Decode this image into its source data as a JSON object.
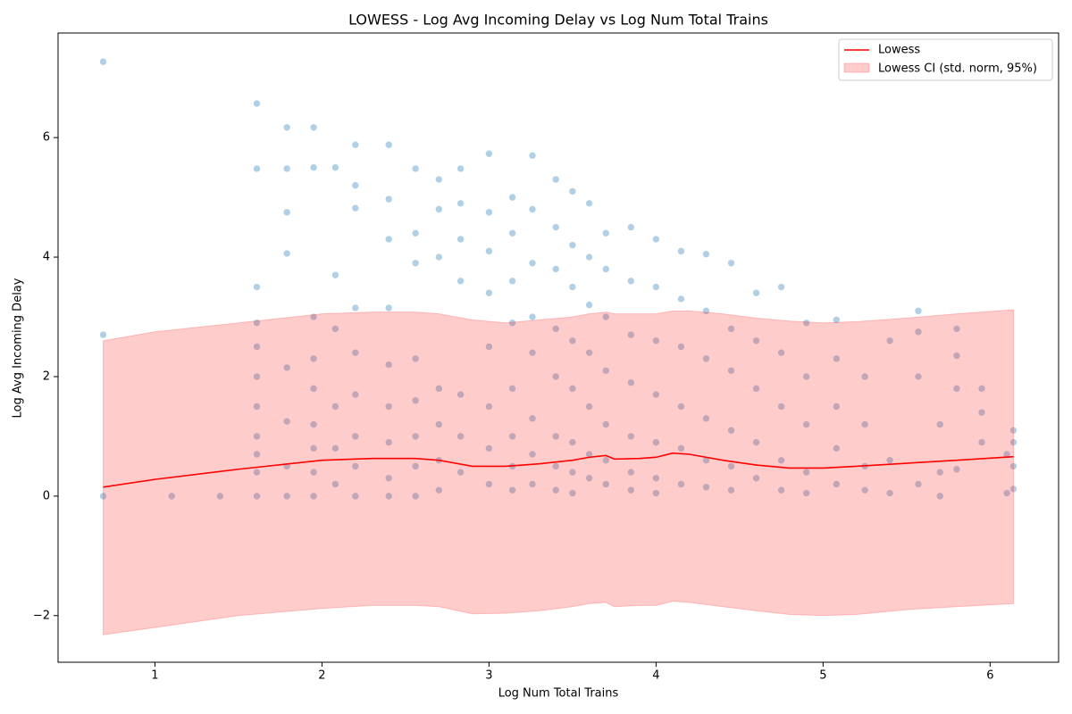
{
  "chart_data": {
    "type": "scatter",
    "title": "LOWESS - Log Avg Incoming Delay vs Log Num Total Trains",
    "x_label": "Log Num Total Trains",
    "y_label": "Log Avg Incoming Delay",
    "xlim": [
      0.42,
      6.41
    ],
    "ylim": [
      -2.78,
      7.75
    ],
    "xticks": [
      1,
      2,
      3,
      4,
      5,
      6
    ],
    "yticks": [
      {
        "value": -2,
        "label": "−2"
      },
      0,
      2,
      4,
      6
    ],
    "legend": "upper right",
    "points": {
      "color": "#1f77b4",
      "x": [
        0.69,
        0.69,
        0.69,
        1.1,
        1.39,
        1.61,
        1.61,
        1.61,
        1.61,
        1.61,
        1.61,
        1.61,
        1.61,
        1.61,
        1.61,
        1.61,
        1.79,
        1.79,
        1.79,
        1.79,
        1.79,
        1.79,
        1.79,
        1.79,
        1.95,
        1.95,
        1.95,
        1.95,
        1.95,
        1.95,
        1.95,
        1.95,
        1.95,
        2.08,
        2.08,
        2.08,
        2.08,
        2.08,
        2.08,
        2.2,
        2.2,
        2.2,
        2.2,
        2.2,
        2.2,
        2.2,
        2.2,
        2.2,
        2.4,
        2.4,
        2.4,
        2.4,
        2.4,
        2.4,
        2.4,
        2.4,
        2.4,
        2.56,
        2.56,
        2.56,
        2.56,
        2.56,
        2.56,
        2.56,
        2.56,
        2.7,
        2.7,
        2.7,
        2.7,
        2.7,
        2.7,
        2.7,
        2.83,
        2.83,
        2.83,
        2.83,
        2.83,
        2.83,
        2.83,
        3.0,
        3.0,
        3.0,
        3.0,
        3.0,
        3.0,
        3.0,
        3.0,
        3.14,
        3.14,
        3.14,
        3.14,
        3.14,
        3.14,
        3.14,
        3.14,
        3.26,
        3.26,
        3.26,
        3.26,
        3.26,
        3.26,
        3.26,
        3.26,
        3.4,
        3.4,
        3.4,
        3.4,
        3.4,
        3.4,
        3.4,
        3.4,
        3.5,
        3.5,
        3.5,
        3.5,
        3.5,
        3.5,
        3.5,
        3.5,
        3.6,
        3.6,
        3.6,
        3.6,
        3.6,
        3.6,
        3.6,
        3.7,
        3.7,
        3.7,
        3.7,
        3.7,
        3.7,
        3.7,
        3.85,
        3.85,
        3.85,
        3.85,
        3.85,
        3.85,
        3.85,
        4.0,
        4.0,
        4.0,
        4.0,
        4.0,
        4.0,
        4.0,
        4.15,
        4.15,
        4.15,
        4.15,
        4.15,
        4.15,
        4.3,
        4.3,
        4.3,
        4.3,
        4.3,
        4.3,
        4.45,
        4.45,
        4.45,
        4.45,
        4.45,
        4.45,
        4.6,
        4.6,
        4.6,
        4.6,
        4.6,
        4.75,
        4.75,
        4.75,
        4.75,
        4.75,
        4.9,
        4.9,
        4.9,
        4.9,
        4.9,
        5.08,
        5.08,
        5.08,
        5.08,
        5.08,
        5.25,
        5.25,
        5.25,
        5.25,
        5.4,
        5.4,
        5.4,
        5.57,
        5.57,
        5.57,
        5.57,
        5.7,
        5.7,
        5.7,
        5.8,
        5.8,
        5.8,
        5.8,
        5.95,
        5.95,
        5.95,
        6.1,
        6.1,
        6.14,
        6.14,
        6.14,
        6.14
      ],
      "values": [
        7.27,
        2.7,
        0,
        0,
        0,
        6.57,
        5.48,
        3.5,
        2.9,
        2.5,
        2.0,
        1.5,
        1.0,
        0.7,
        0.4,
        0,
        6.17,
        5.48,
        4.75,
        4.06,
        2.15,
        1.25,
        0.5,
        0,
        6.17,
        5.5,
        3.0,
        2.3,
        1.8,
        1.2,
        0.8,
        0.4,
        0,
        5.5,
        3.7,
        2.8,
        1.5,
        0.8,
        0.2,
        5.88,
        5.2,
        4.82,
        3.15,
        2.4,
        1.7,
        1.0,
        0.5,
        0,
        5.88,
        4.97,
        4.3,
        3.15,
        2.2,
        1.5,
        0.9,
        0.3,
        0,
        5.48,
        4.4,
        3.9,
        2.3,
        1.6,
        1.0,
        0.5,
        0,
        5.3,
        4.8,
        4.0,
        1.8,
        1.2,
        0.6,
        0.1,
        5.48,
        4.9,
        4.3,
        3.6,
        1.7,
        1.0,
        0.4,
        5.73,
        4.75,
        4.1,
        3.4,
        2.5,
        1.5,
        0.8,
        0.2,
        5.0,
        4.4,
        3.6,
        2.9,
        1.8,
        1.0,
        0.5,
        0.1,
        5.7,
        4.8,
        3.9,
        3.0,
        2.4,
        1.3,
        0.7,
        0.2,
        5.3,
        4.5,
        3.8,
        2.8,
        2.0,
        1.0,
        0.5,
        0.1,
        5.1,
        4.2,
        3.5,
        2.6,
        1.8,
        0.9,
        0.4,
        0.05,
        4.9,
        4.0,
        3.2,
        2.4,
        1.5,
        0.7,
        0.3,
        4.4,
        3.8,
        3.0,
        2.1,
        1.2,
        0.6,
        0.2,
        4.5,
        3.6,
        2.7,
        1.9,
        1.0,
        0.4,
        0.1,
        4.3,
        3.5,
        2.6,
        1.7,
        0.9,
        0.3,
        0.05,
        4.1,
        3.3,
        2.5,
        1.5,
        0.8,
        0.2,
        4.05,
        3.1,
        2.3,
        1.3,
        0.6,
        0.15,
        3.9,
        2.8,
        2.1,
        1.1,
        0.5,
        0.1,
        3.4,
        2.6,
        1.8,
        0.9,
        0.3,
        3.5,
        2.4,
        1.5,
        0.6,
        0.1,
        2.9,
        2.0,
        1.2,
        0.4,
        0.05,
        2.95,
        2.3,
        1.5,
        0.8,
        0.2,
        2.0,
        1.2,
        0.5,
        0.1,
        2.6,
        0.6,
        0.05,
        3.1,
        2.75,
        2.0,
        0.2,
        1.2,
        0.4,
        0,
        2.8,
        2.35,
        1.8,
        0.45,
        1.8,
        1.4,
        0.9,
        0.7,
        0.05,
        1.1,
        0.9,
        0.5,
        0.12
      ]
    },
    "lowess": {
      "name": "Lowess",
      "color": "#ff0000",
      "x": [
        0.69,
        1.0,
        1.5,
        2.0,
        2.3,
        2.56,
        2.7,
        2.9,
        3.1,
        3.3,
        3.5,
        3.6,
        3.7,
        3.75,
        3.9,
        4.0,
        4.1,
        4.2,
        4.4,
        4.6,
        4.8,
        5.0,
        5.2,
        5.5,
        5.8,
        6.14
      ],
      "values": [
        0.15,
        0.28,
        0.45,
        0.6,
        0.63,
        0.63,
        0.6,
        0.5,
        0.5,
        0.54,
        0.6,
        0.65,
        0.68,
        0.62,
        0.63,
        0.65,
        0.72,
        0.7,
        0.6,
        0.52,
        0.47,
        0.47,
        0.5,
        0.55,
        0.6,
        0.66
      ]
    },
    "ci": {
      "name": "Lowess CI (std. norm, 95%)",
      "color": "#ff0000",
      "upper": [
        2.6,
        2.75,
        2.9,
        3.05,
        3.08,
        3.08,
        3.05,
        2.95,
        2.9,
        2.95,
        3.0,
        3.05,
        3.08,
        3.05,
        3.05,
        3.05,
        3.1,
        3.1,
        3.05,
        2.98,
        2.93,
        2.9,
        2.92,
        2.98,
        3.05,
        3.12
      ],
      "lower": [
        -2.32,
        -2.2,
        -2.0,
        -1.88,
        -1.83,
        -1.83,
        -1.85,
        -1.97,
        -1.96,
        -1.92,
        -1.85,
        -1.8,
        -1.78,
        -1.85,
        -1.83,
        -1.83,
        -1.76,
        -1.78,
        -1.85,
        -1.92,
        -1.98,
        -2.0,
        -1.98,
        -1.9,
        -1.85,
        -1.8
      ]
    }
  }
}
